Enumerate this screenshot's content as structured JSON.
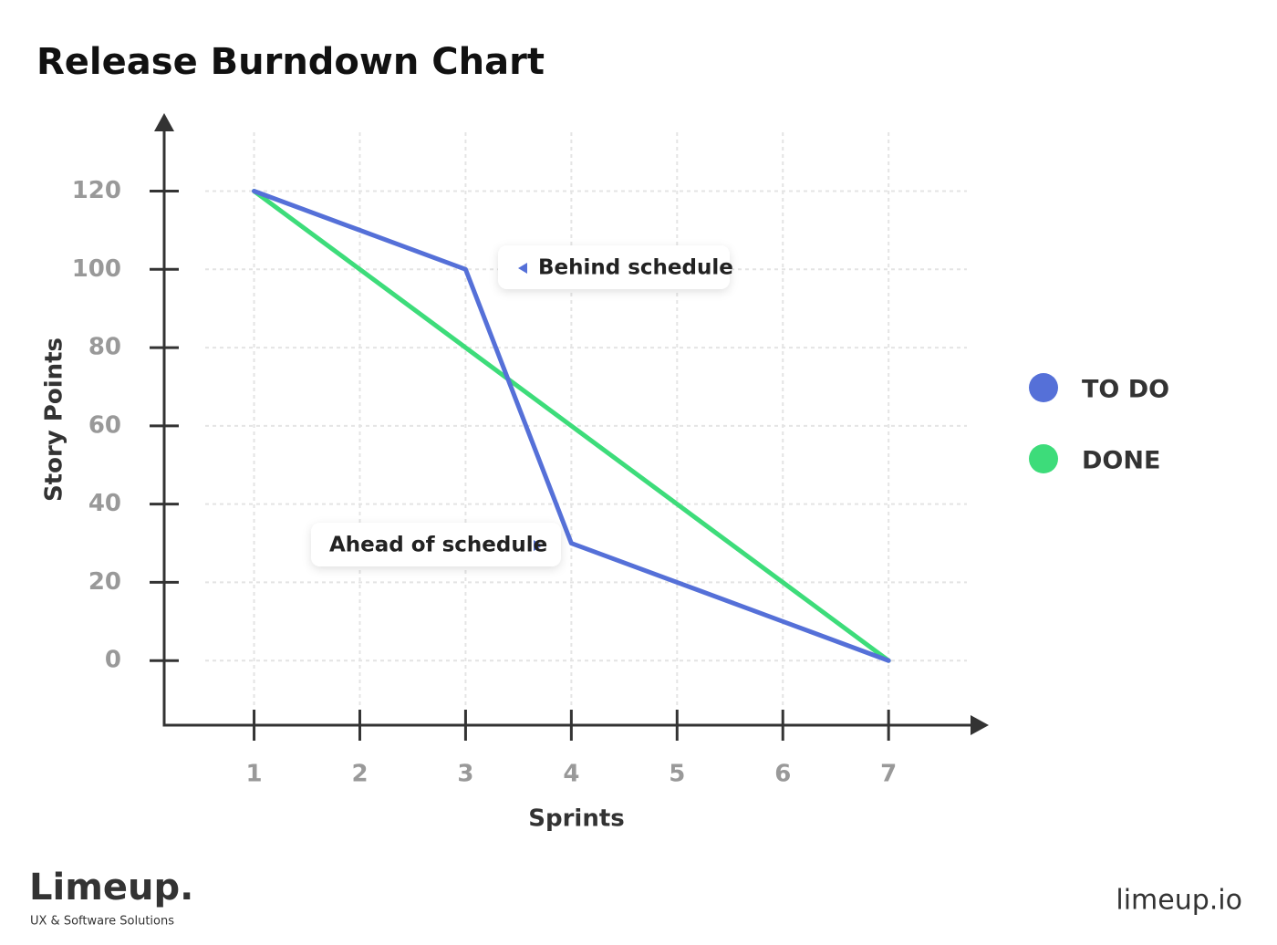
{
  "chart_data": {
    "type": "line",
    "title": "Release Burndown Chart",
    "x_label": "Sprints",
    "y_label": "Story Points",
    "x": [
      1,
      2,
      3,
      4,
      5,
      6,
      7
    ],
    "series": [
      {
        "name": "TO DO",
        "color": "#5570d8",
        "values": [
          120,
          110,
          100,
          30,
          20,
          10,
          0
        ]
      },
      {
        "name": "DONE",
        "color": "#3ddc7a",
        "values": [
          120,
          100,
          80,
          60,
          40,
          20,
          0
        ]
      }
    ],
    "xlim": [
      0.15,
      7.93
    ],
    "xticks": [
      1,
      2,
      3,
      4,
      5,
      6,
      7
    ],
    "ylim": [
      -16.5,
      139
    ],
    "yticks": [
      0,
      20,
      40,
      60,
      80,
      100,
      120
    ],
    "grid": true,
    "legend": "right",
    "annotations": [
      {
        "text": "Behind schedule"
      },
      {
        "text": "Ahead of schedule"
      }
    ]
  },
  "footer": {
    "logo": "Limeup.",
    "tagline": "UX & Software Solutions",
    "url": "limeup.io"
  }
}
